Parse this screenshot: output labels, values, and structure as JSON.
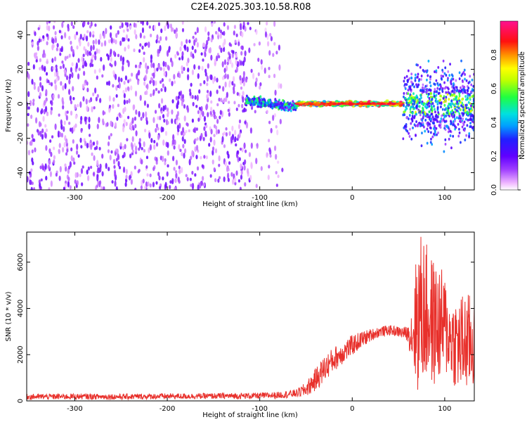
{
  "title": "C2E4.2025.303.10.58.R08",
  "colors": {
    "snr_line": "#e8302b",
    "axis": "#000000",
    "background": "#ffffff"
  },
  "chart_data": [
    {
      "type": "heatmap",
      "title": "C2E4.2025.303.10.58.R08",
      "xlabel": "Height of straight line (km)",
      "ylabel": "Frequency (Hz)",
      "xlim": [
        -352,
        132
      ],
      "ylim": [
        -50,
        48
      ],
      "x_ticks": [
        -300,
        -200,
        -100,
        0,
        100
      ],
      "x_tick_labels": [
        "-300",
        "-200",
        "-100",
        "0",
        "100"
      ],
      "y_ticks": [
        -40,
        -20,
        0,
        20,
        40
      ],
      "y_tick_labels": [
        "-40",
        "-20",
        "0",
        "20",
        "40"
      ],
      "colorbar": {
        "label": "Normalized spectral amplitude",
        "range": [
          0.0,
          1.0
        ],
        "ticks": [
          0.0,
          0.2,
          0.4,
          0.6,
          0.8
        ],
        "tick_labels": [
          "0.0",
          "0.2",
          "0.4",
          "0.6",
          "0.8"
        ]
      },
      "regions": [
        {
          "x_range": [
            -352,
            -110
          ],
          "freq_center": 0,
          "freq_halfwidth": 50,
          "amplitude": 0.1,
          "description": "broadband noise"
        },
        {
          "x_range": [
            -110,
            -75
          ],
          "freq_center": 0,
          "freq_halfwidth": 50,
          "amplitude": 0.08,
          "description": "fading noise"
        },
        {
          "x_range": [
            -115,
            -60
          ],
          "freq_center": 2,
          "freq_halfwidth": 6,
          "amplitude": 0.35,
          "description": "signal onset"
        },
        {
          "x_range": [
            -60,
            55
          ],
          "freq_center": 0,
          "freq_halfwidth": 2,
          "amplitude": 0.95,
          "description": "narrow carrier"
        },
        {
          "x_range": [
            55,
            132
          ],
          "freq_center": 0,
          "freq_halfwidth": 30,
          "amplitude": 0.4,
          "description": "scintillation"
        }
      ]
    },
    {
      "type": "line",
      "xlabel": "Height of straight line (km)",
      "ylabel": "SNR (10 * v/v)",
      "xlim": [
        -352,
        132
      ],
      "ylim": [
        0,
        7300
      ],
      "x_ticks": [
        -300,
        -200,
        -100,
        0,
        100
      ],
      "x_tick_labels": [
        "-300",
        "-200",
        "-100",
        "0",
        "100"
      ],
      "y_ticks": [
        0,
        2000,
        4000,
        6000
      ],
      "y_tick_labels": [
        "0",
        "2000",
        "4000",
        "6000"
      ],
      "series": [
        {
          "name": "SNR",
          "x": [
            -352,
            -300,
            -250,
            -200,
            -150,
            -100,
            -80,
            -60,
            -50,
            -40,
            -30,
            -20,
            -10,
            0,
            10,
            20,
            30,
            40,
            50,
            60,
            65,
            70,
            75,
            80,
            85,
            90,
            95,
            100,
            105,
            110,
            115,
            120,
            125,
            132
          ],
          "values": [
            180,
            190,
            180,
            200,
            210,
            220,
            250,
            330,
            500,
            900,
            1400,
            1800,
            2100,
            2400,
            2650,
            2850,
            3000,
            3050,
            3000,
            2900,
            2900,
            3500,
            4000,
            3800,
            3500,
            3300,
            3300,
            3200,
            2800,
            2600,
            2400,
            2500,
            2500,
            2600
          ],
          "spread": [
            140,
            140,
            140,
            140,
            140,
            150,
            160,
            200,
            350,
            550,
            650,
            600,
            550,
            500,
            400,
            300,
            250,
            250,
            250,
            350,
            1500,
            3600,
            3800,
            3400,
            3200,
            3000,
            2800,
            2600,
            1800,
            2200,
            2300,
            2500,
            2400,
            2400
          ]
        }
      ]
    }
  ]
}
